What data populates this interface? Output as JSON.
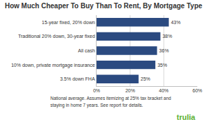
{
  "chart_data": {
    "type": "bar",
    "orientation": "horizontal",
    "title": "How Much Cheaper To Buy Than To Rent, By Mortgage Type",
    "categories": [
      "15-year fixed, 20% down",
      "Traditional 20% down, 30-year fixed",
      "All cash",
      "10% down, private mortgage insurance",
      "3.5% down FHA"
    ],
    "values": [
      43,
      38,
      36,
      35,
      25
    ],
    "value_labels": [
      "43%",
      "38%",
      "36%",
      "35%",
      "25%"
    ],
    "data_labels": true,
    "color": "#2b4a80",
    "xlim": [
      0,
      60
    ],
    "xticks": [
      {
        "value": 0,
        "label": "0%"
      },
      {
        "value": 20,
        "label": "20%"
      },
      {
        "value": 40,
        "label": "40%"
      },
      {
        "value": 60,
        "label": "60%"
      }
    ],
    "grid": true,
    "annotations": [
      "National average. Assumes itemizing at 25% tax bracket and",
      "staying in home 7 years. See report for details.",
      "trulia"
    ]
  }
}
